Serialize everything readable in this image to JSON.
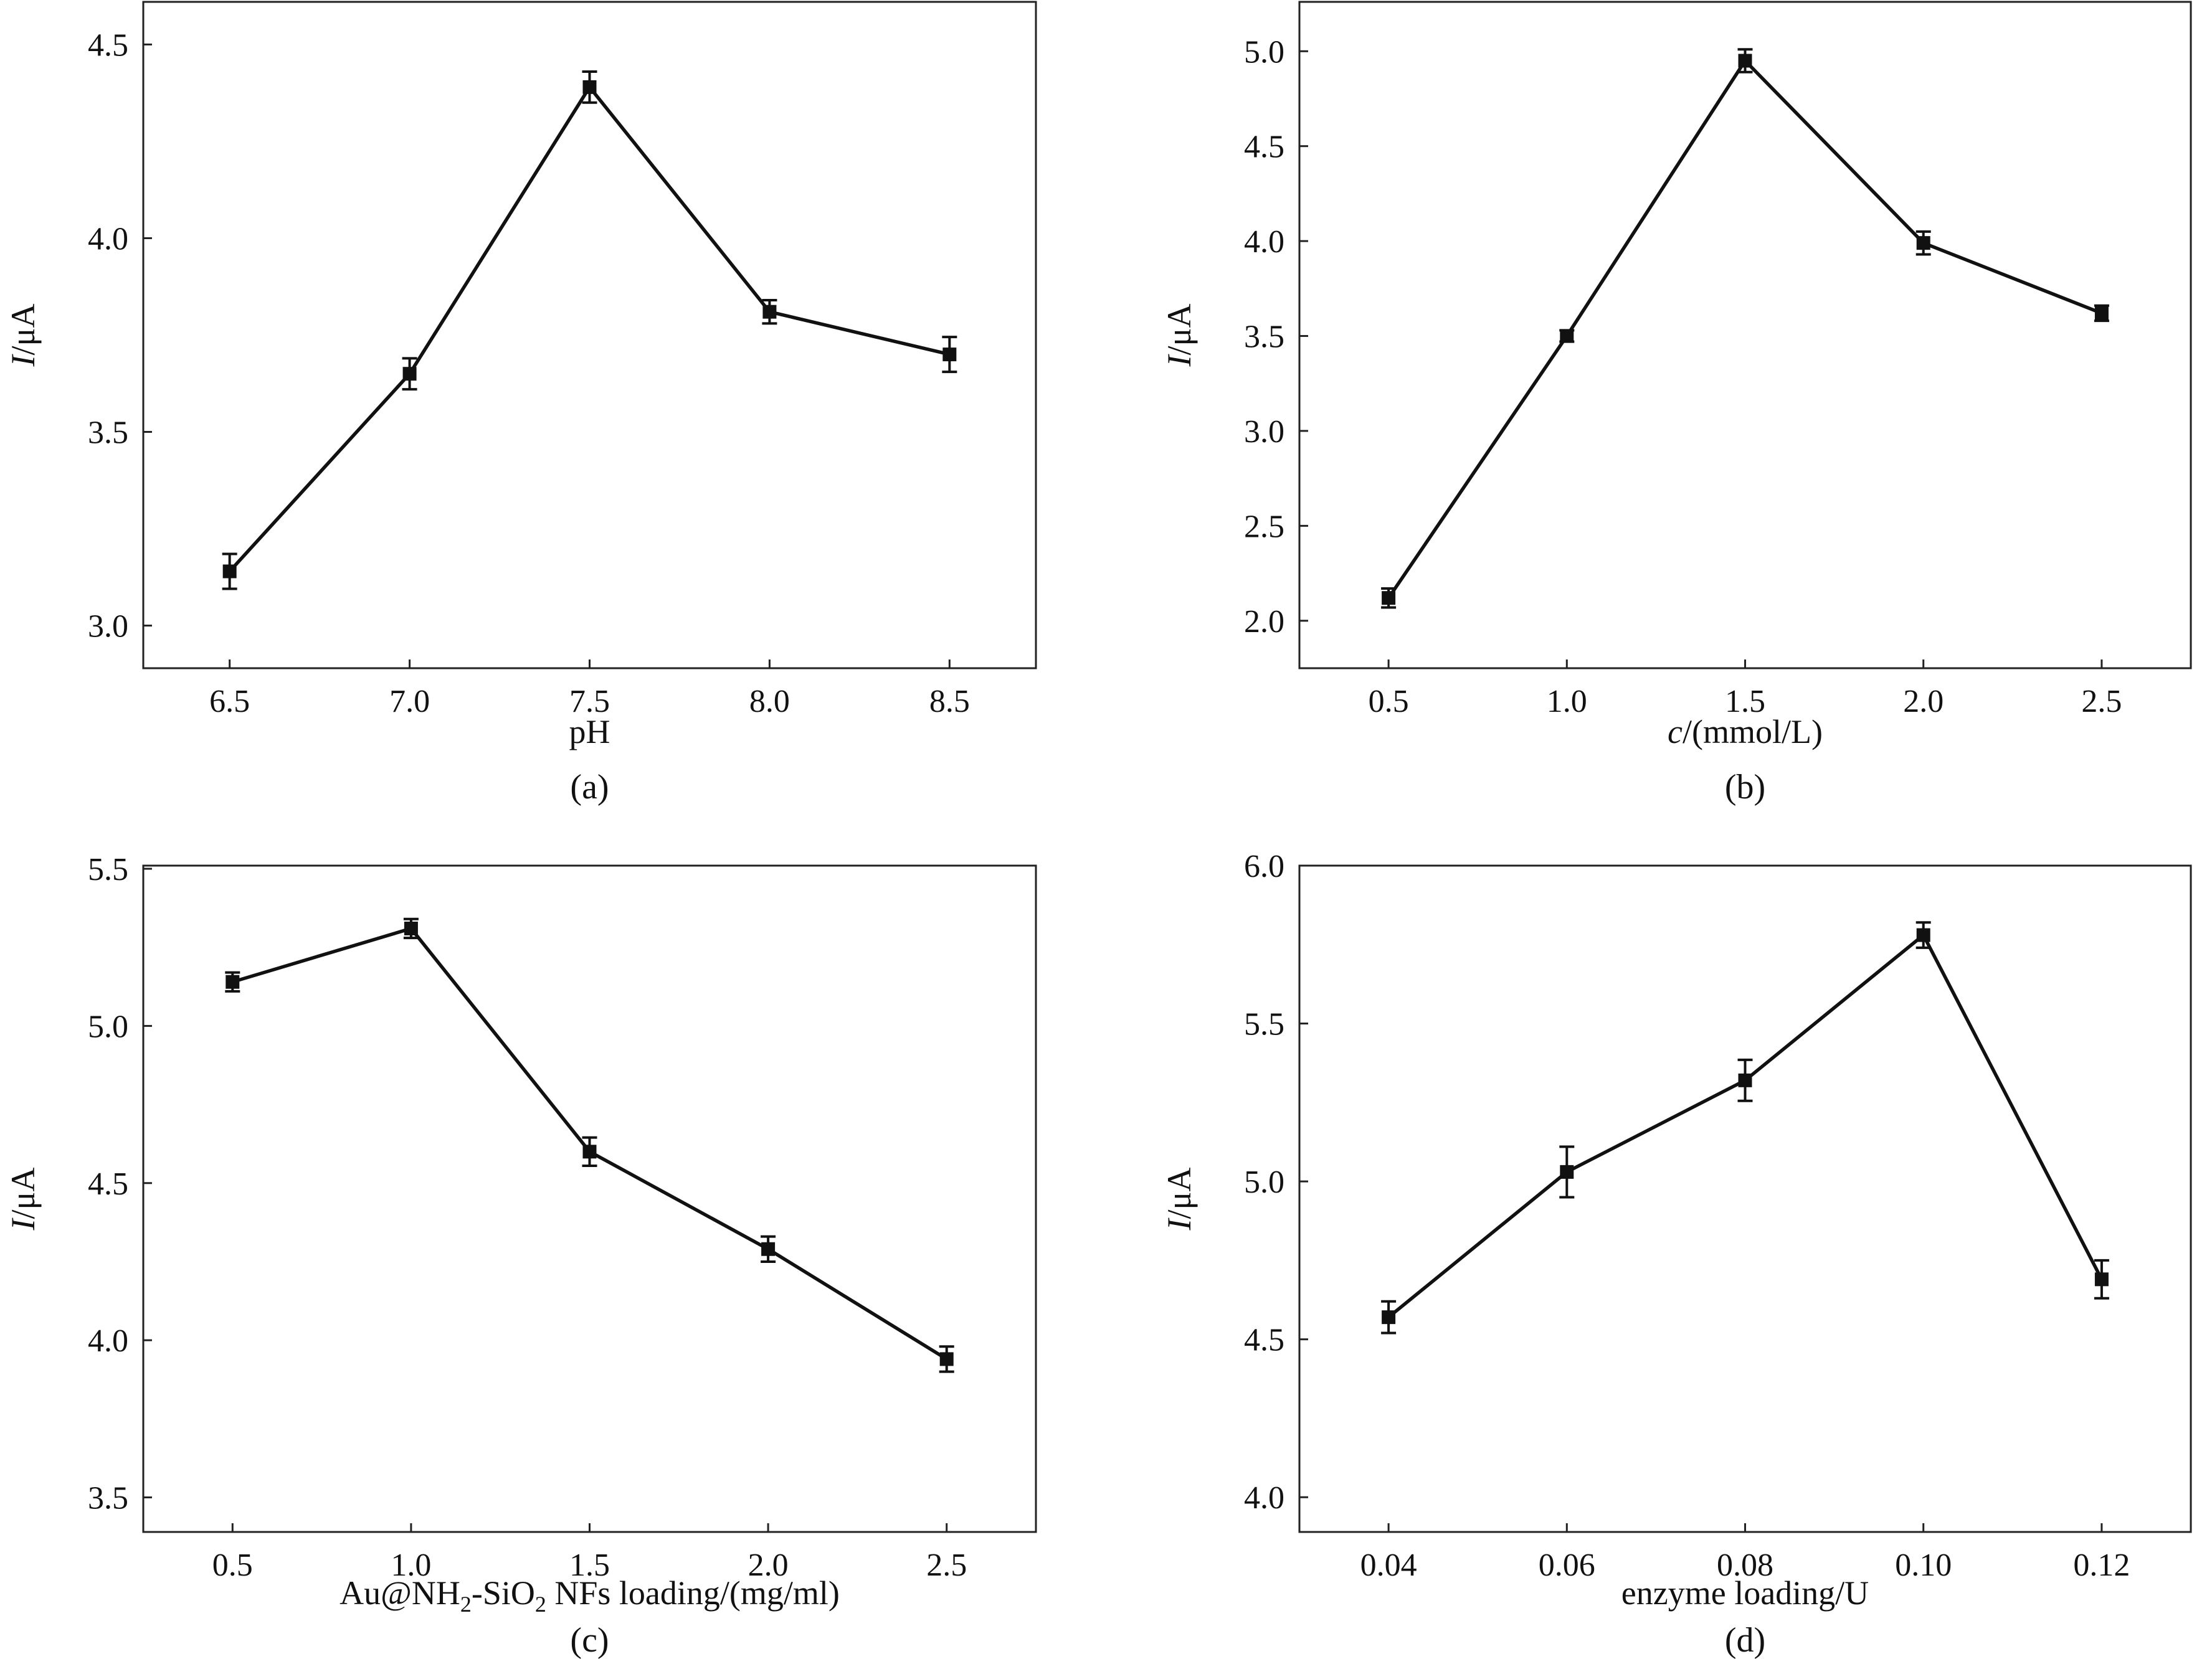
{
  "figure": {
    "colors": {
      "line": "#111111",
      "marker": "#111111",
      "frame": "#222222",
      "background": "#ffffff"
    }
  },
  "chart_data": [
    {
      "type": "line",
      "panel": "a",
      "caption": "(a)",
      "xlabel": "pH",
      "ylabel_italic": "I",
      "ylabel_rest": "/μA",
      "x": [
        6.5,
        7.0,
        7.5,
        8.0,
        8.5
      ],
      "y": [
        3.14,
        3.65,
        4.39,
        3.81,
        3.7
      ],
      "yerr": [
        0.045,
        0.04,
        0.04,
        0.03,
        0.045
      ],
      "xlim": [
        6.26,
        8.74
      ],
      "ylim": [
        2.89,
        4.61
      ],
      "xticks": [
        6.5,
        7.0,
        7.5,
        8.0,
        8.5
      ],
      "yticks": [
        3.0,
        3.5,
        4.0,
        4.5
      ],
      "xtick_labels": [
        "6.5",
        "7.0",
        "7.5",
        "8.0",
        "8.5"
      ],
      "ytick_labels": [
        "3.0",
        "3.5",
        "4.0",
        "4.5"
      ]
    },
    {
      "type": "line",
      "panel": "b",
      "caption": "(b)",
      "xlabel_italic": "c",
      "xlabel_rest": "/(mmol/L)",
      "ylabel_italic": "I",
      "ylabel_rest": "/μA",
      "x": [
        0.5,
        1.0,
        1.5,
        2.0,
        2.5
      ],
      "y": [
        2.12,
        3.5,
        4.95,
        3.99,
        3.62
      ],
      "yerr": [
        0.05,
        0.03,
        0.06,
        0.06,
        0.04
      ],
      "xlim": [
        0.25,
        2.75
      ],
      "ylim": [
        1.75,
        5.26
      ],
      "xticks": [
        0.5,
        1.0,
        1.5,
        2.0,
        2.5
      ],
      "yticks": [
        2.0,
        2.5,
        3.0,
        3.5,
        4.0,
        4.5,
        5.0
      ],
      "xtick_labels": [
        "0.5",
        "1.0",
        "1.5",
        "2.0",
        "2.5"
      ],
      "ytick_labels": [
        "2.0",
        "2.5",
        "3.0",
        "3.5",
        "4.0",
        "4.5",
        "5.0"
      ]
    },
    {
      "type": "line",
      "panel": "c",
      "caption": "(c)",
      "xlabel_parts": [
        "Au@NH",
        "2",
        "-SiO",
        "2",
        " NFs loading/(mg/ml)"
      ],
      "ylabel_italic": "I",
      "ylabel_rest": "/μA",
      "x": [
        0.5,
        1.0,
        1.5,
        2.0,
        2.5
      ],
      "y": [
        5.14,
        5.31,
        4.6,
        4.29,
        3.94
      ],
      "yerr": [
        0.03,
        0.03,
        0.045,
        0.04,
        0.04
      ],
      "xlim": [
        0.25,
        2.75
      ],
      "ylim": [
        3.39,
        5.51
      ],
      "xticks": [
        0.5,
        1.0,
        1.5,
        2.0,
        2.5
      ],
      "yticks": [
        3.5,
        4.0,
        4.5,
        5.0,
        5.5
      ],
      "xtick_labels": [
        "0.5",
        "1.0",
        "1.5",
        "2.0",
        "2.5"
      ],
      "ytick_labels": [
        "3.5",
        "4.0",
        "4.5",
        "5.0",
        "5.5"
      ]
    },
    {
      "type": "line",
      "panel": "d",
      "caption": "(d)",
      "xlabel": "enzyme loading/U",
      "ylabel_italic": "I",
      "ylabel_rest": "/μA",
      "x": [
        0.04,
        0.06,
        0.08,
        0.1,
        0.12
      ],
      "y": [
        4.57,
        5.03,
        5.32,
        5.78,
        4.69
      ],
      "yerr": [
        0.05,
        0.08,
        0.065,
        0.04,
        0.06
      ],
      "xlim": [
        0.03,
        0.13
      ],
      "ylim": [
        3.89,
        6.0
      ],
      "xticks": [
        0.04,
        0.06,
        0.08,
        0.1,
        0.12
      ],
      "yticks": [
        4.0,
        4.5,
        5.0,
        5.5,
        6.0
      ],
      "xtick_labels": [
        "0.04",
        "0.06",
        "0.08",
        "0.10",
        "0.12"
      ],
      "ytick_labels": [
        "4.0",
        "4.5",
        "5.0",
        "5.5",
        "6.0"
      ]
    }
  ]
}
